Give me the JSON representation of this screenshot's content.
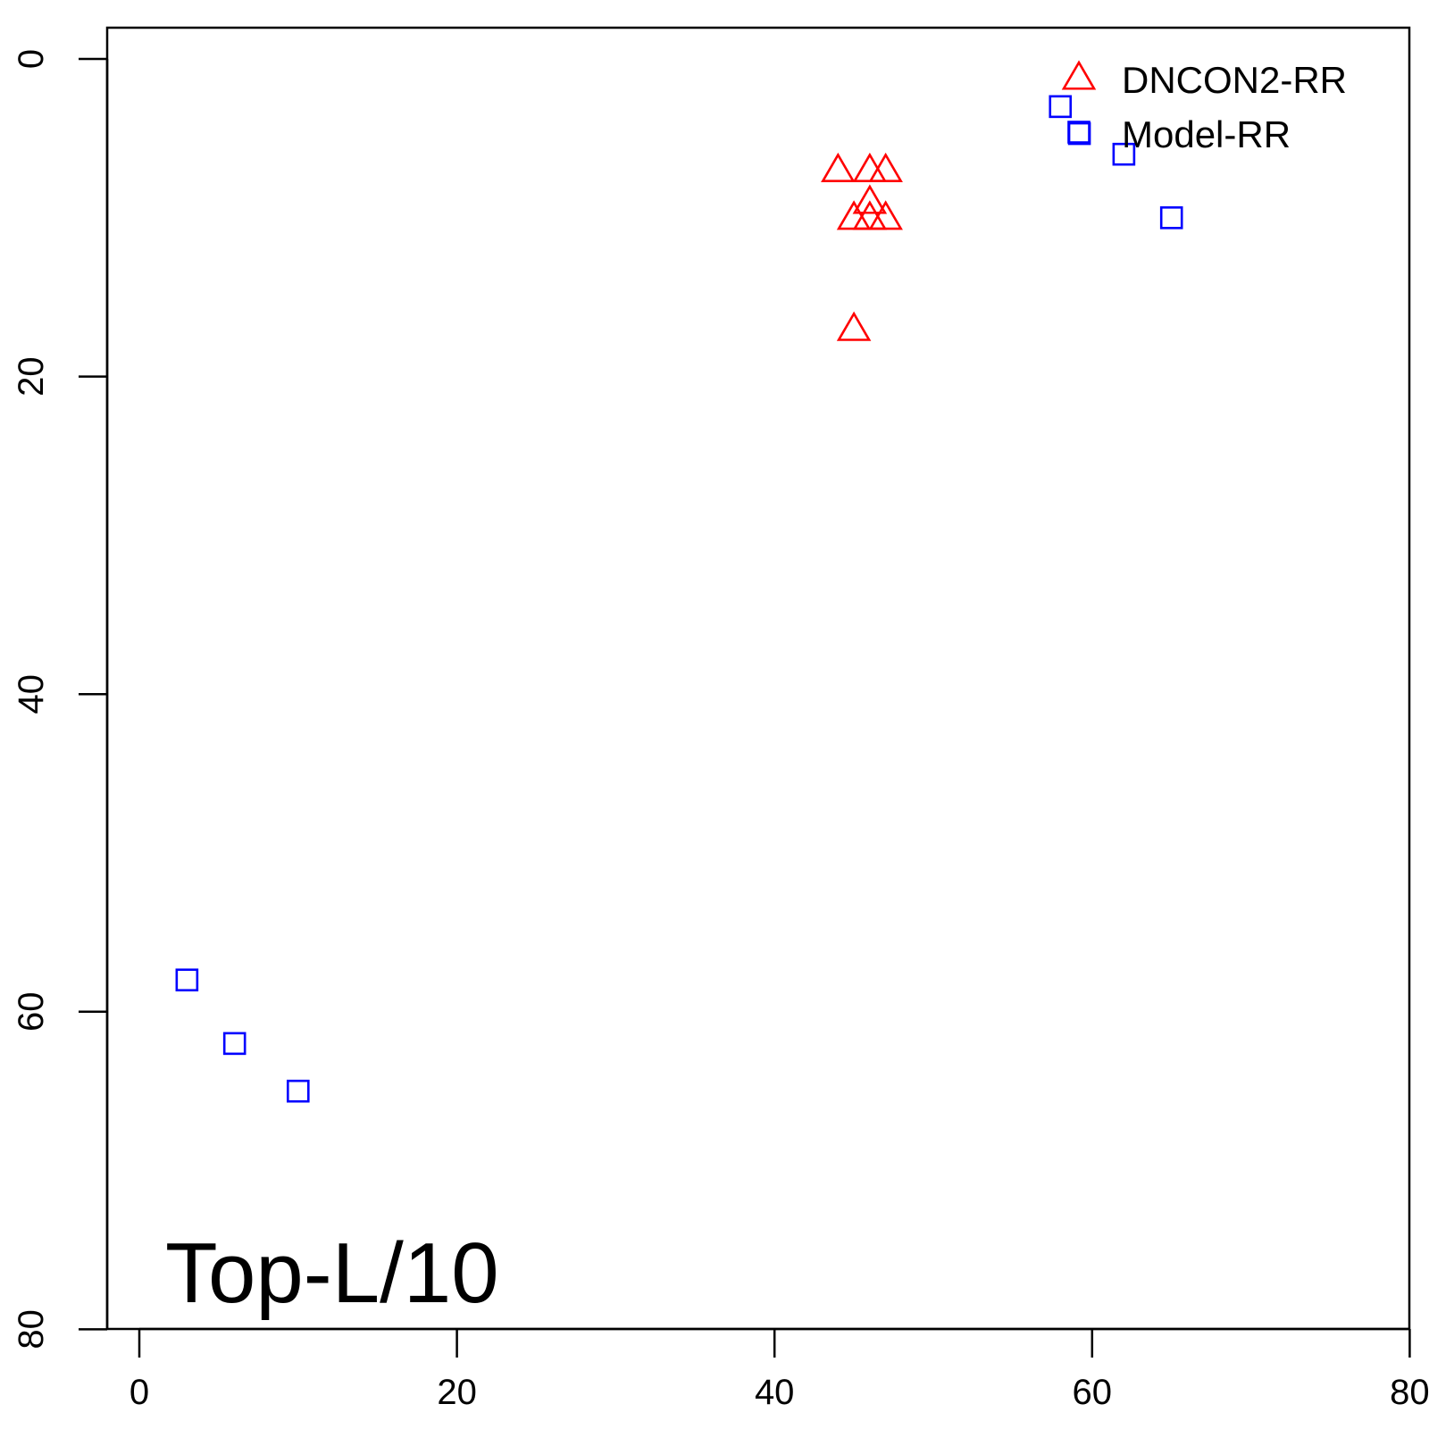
{
  "chart_data": {
    "type": "scatter",
    "title": "",
    "xlabel": "",
    "ylabel": "",
    "xlim": [
      -2,
      80
    ],
    "ylim": [
      0,
      80
    ],
    "y_reversed": true,
    "grid": false,
    "legend_position": "top-right",
    "x_ticks": [
      0,
      20,
      40,
      60,
      80
    ],
    "y_ticks": [
      0,
      20,
      40,
      60,
      80
    ],
    "x_tick_labels": [
      "0",
      "20",
      "40",
      "60",
      "80"
    ],
    "y_tick_labels": [
      "0",
      "20",
      "40",
      "60",
      "80"
    ],
    "annotation": "Top-L/10",
    "series": [
      {
        "name": "DNCON2-RR",
        "marker": "triangle",
        "color": "#ff0000",
        "points": [
          [
            44,
            7
          ],
          [
            46,
            7
          ],
          [
            47,
            7
          ],
          [
            46,
            9
          ],
          [
            45,
            10
          ],
          [
            46,
            10
          ],
          [
            47,
            10
          ],
          [
            45,
            17
          ]
        ]
      },
      {
        "name": "Model-RR",
        "marker": "square",
        "color": "#0000ff",
        "points": [
          [
            58,
            3
          ],
          [
            59.2,
            4.7
          ],
          [
            62,
            6
          ],
          [
            65,
            10
          ],
          [
            3,
            58
          ],
          [
            6,
            62
          ],
          [
            10,
            65
          ]
        ]
      }
    ]
  }
}
